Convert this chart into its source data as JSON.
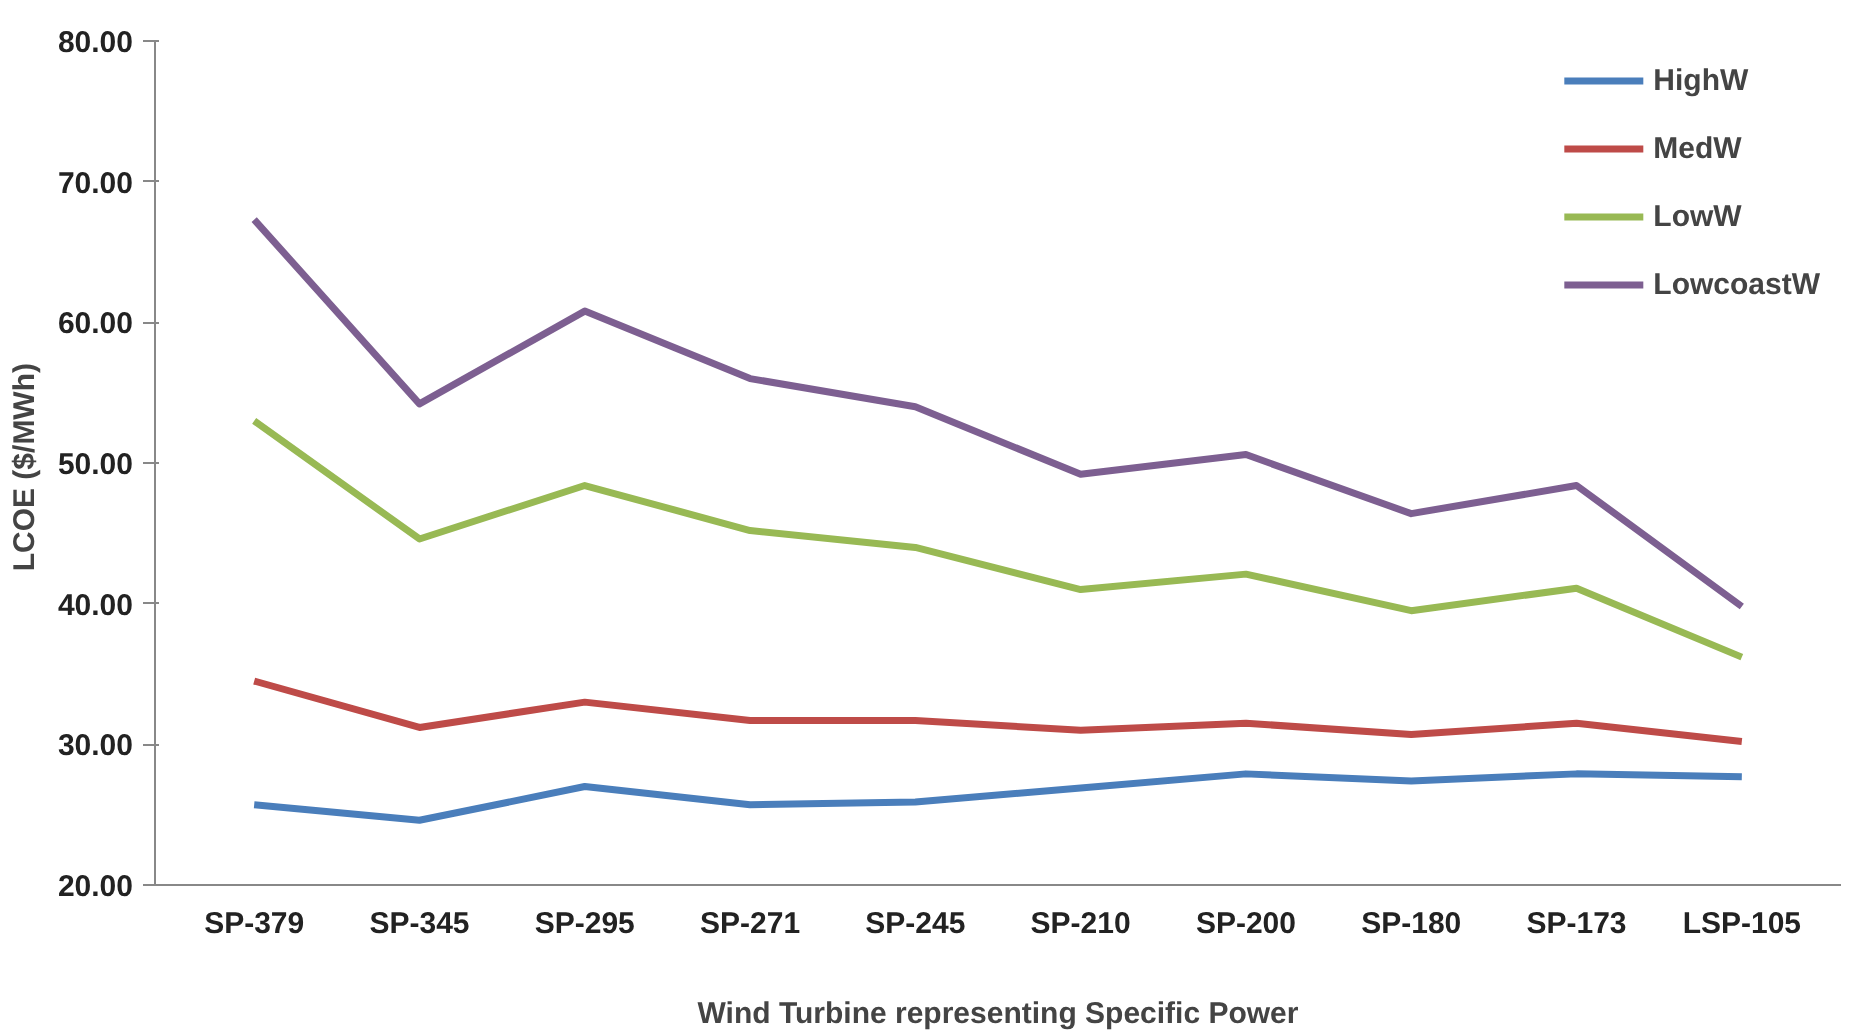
{
  "chart_data": {
    "type": "line",
    "xlabel": "Wind Turbine representing Specific Power",
    "ylabel": "LCOE  ($/MWh)",
    "categories": [
      "SP-379",
      "SP-345",
      "SP-295",
      "SP-271",
      "SP-245",
      "SP-210",
      "SP-200",
      "SP-180",
      "SP-173",
      "LSP-105"
    ],
    "series": [
      {
        "name": "HighW",
        "color": "#4a7ebb",
        "values": [
          25.7,
          24.6,
          27.0,
          25.7,
          25.9,
          26.9,
          27.9,
          27.4,
          27.9,
          27.7
        ]
      },
      {
        "name": "MedW",
        "color": "#be4b48",
        "values": [
          34.5,
          31.2,
          33.0,
          31.7,
          31.7,
          31.0,
          31.5,
          30.7,
          31.5,
          30.2
        ]
      },
      {
        "name": "LowW",
        "color": "#98b954",
        "values": [
          53.0,
          44.6,
          48.4,
          45.2,
          44.0,
          41.0,
          42.1,
          39.5,
          41.1,
          36.2
        ]
      },
      {
        "name": "LowcoastW",
        "color": "#7d5f91",
        "values": [
          67.3,
          54.2,
          60.8,
          56.0,
          54.0,
          49.2,
          50.6,
          46.4,
          48.4,
          39.8
        ]
      }
    ],
    "ylim": [
      20,
      80
    ],
    "yticks": [
      {
        "value": 20,
        "label": "20.00"
      },
      {
        "value": 30,
        "label": "30.00"
      },
      {
        "value": 40,
        "label": "40.00"
      },
      {
        "value": 50,
        "label": "50.00"
      },
      {
        "value": 60,
        "label": "60.00"
      },
      {
        "value": 70,
        "label": "70.00"
      },
      {
        "value": 80,
        "label": "80.00"
      }
    ],
    "grid": false,
    "legend": "top right",
    "line_style": "solid"
  }
}
